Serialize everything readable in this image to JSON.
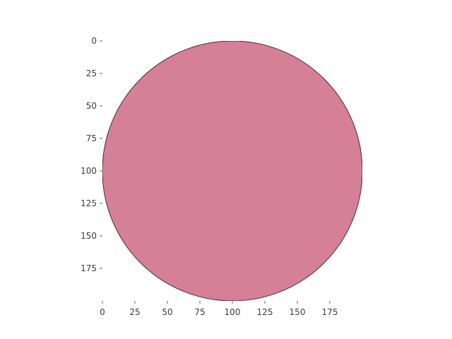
{
  "chart_data": {
    "type": "heatmap",
    "title": "",
    "xlabel": "",
    "ylabel": "",
    "image_size": [
      200,
      200
    ],
    "xlim": [
      0,
      200
    ],
    "ylim": [
      200,
      0
    ],
    "x_ticks": [
      0,
      25,
      50,
      75,
      100,
      125,
      150,
      175
    ],
    "y_ticks": [
      0,
      25,
      50,
      75,
      100,
      125,
      150,
      175
    ],
    "shape": {
      "kind": "disk",
      "center": [
        100,
        100
      ],
      "radius": 100,
      "fill_color": "#d58096",
      "outline_color": "#4a2a33"
    },
    "background_color": "#ffffff",
    "grid": false
  }
}
